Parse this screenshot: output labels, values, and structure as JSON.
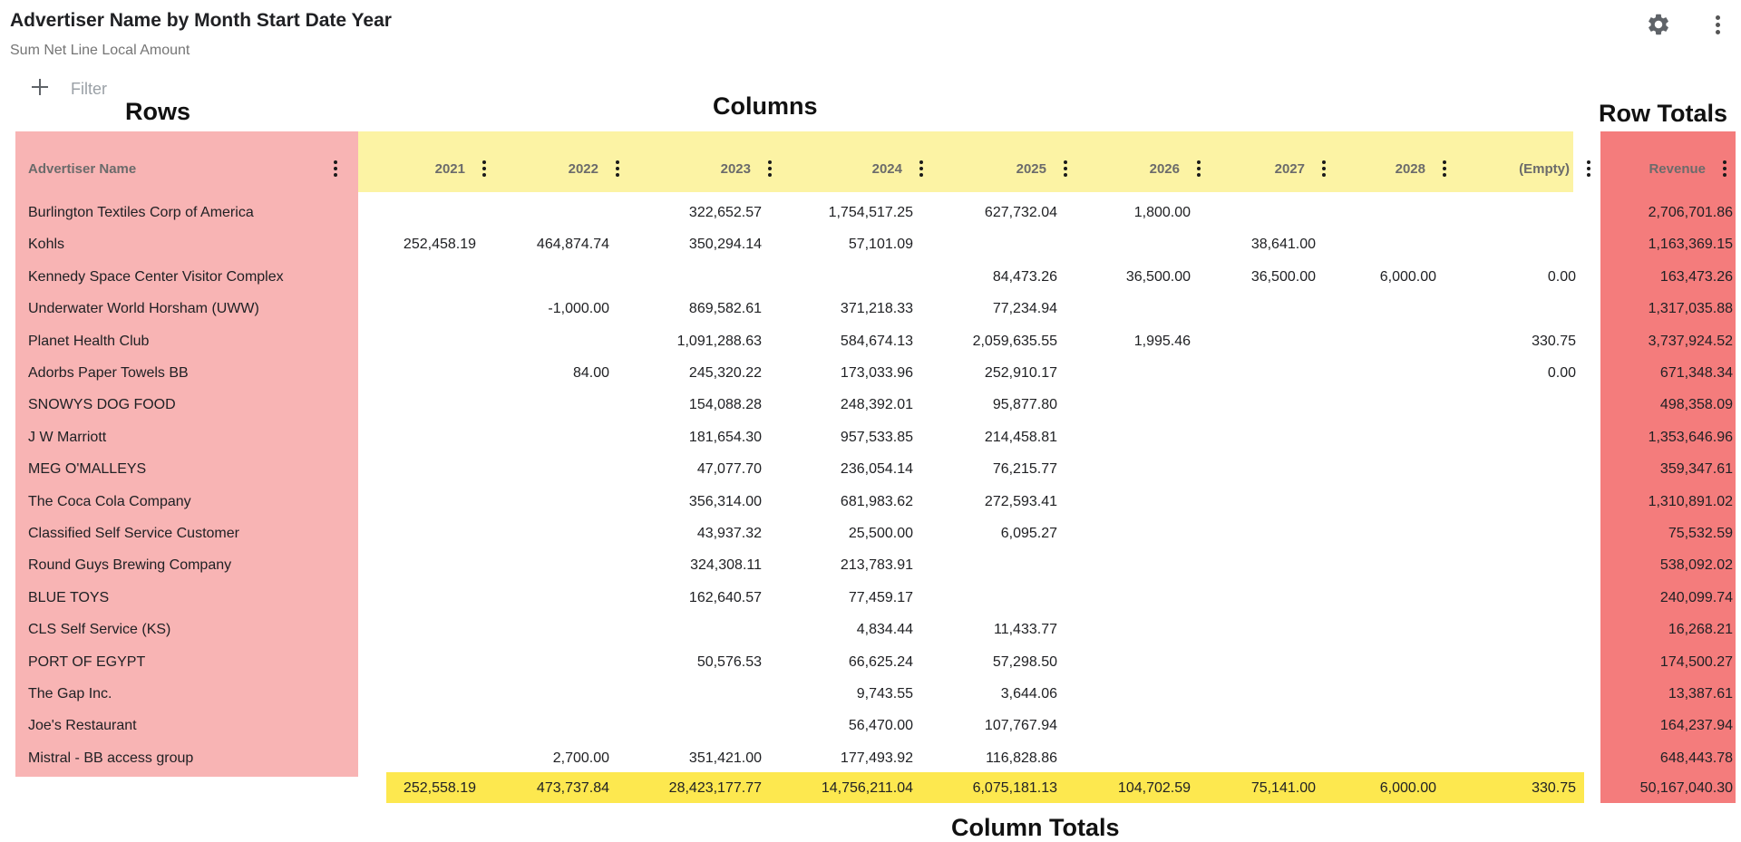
{
  "title": "Advertiser Name by Month Start Date Year",
  "subtitle": "Sum Net Line Local Amount",
  "toolbar": {
    "settings_icon": "gear-icon",
    "more_icon": "more-vert-icon",
    "add_icon": "plus-icon",
    "filter_placeholder": "Filter"
  },
  "annotations": {
    "rows": "Rows",
    "columns": "Columns",
    "row_totals": "Row Totals",
    "column_totals": "Column Totals"
  },
  "colors": {
    "rows_area": "#f8b4b4",
    "columns_area": "#fcf3a4",
    "row_totals_area": "#f47c7c",
    "column_totals_area": "#fde84f"
  },
  "table": {
    "row_header": "Advertiser Name",
    "column_headers": [
      "2021",
      "2022",
      "2023",
      "2024",
      "2025",
      "2026",
      "2027",
      "2028",
      "(Empty)"
    ],
    "total_header": "Revenue",
    "rows": [
      {
        "name": "Burlington Textiles Corp of America",
        "values": [
          "",
          "",
          "322,652.57",
          "1,754,517.25",
          "627,732.04",
          "1,800.00",
          "",
          "",
          ""
        ],
        "total": "2,706,701.86"
      },
      {
        "name": "Kohls",
        "values": [
          "252,458.19",
          "464,874.74",
          "350,294.14",
          "57,101.09",
          "",
          "",
          "38,641.00",
          "",
          ""
        ],
        "total": "1,163,369.15"
      },
      {
        "name": "Kennedy Space Center Visitor Complex",
        "values": [
          "",
          "",
          "",
          "",
          "84,473.26",
          "36,500.00",
          "36,500.00",
          "6,000.00",
          "0.00"
        ],
        "total": "163,473.26"
      },
      {
        "name": "Underwater World Horsham (UWW)",
        "values": [
          "",
          "-1,000.00",
          "869,582.61",
          "371,218.33",
          "77,234.94",
          "",
          "",
          "",
          ""
        ],
        "total": "1,317,035.88"
      },
      {
        "name": "Planet Health Club",
        "values": [
          "",
          "",
          "1,091,288.63",
          "584,674.13",
          "2,059,635.55",
          "1,995.46",
          "",
          "",
          "330.75"
        ],
        "total": "3,737,924.52"
      },
      {
        "name": "Adorbs Paper Towels BB",
        "values": [
          "",
          "84.00",
          "245,320.22",
          "173,033.96",
          "252,910.17",
          "",
          "",
          "",
          "0.00"
        ],
        "total": "671,348.34"
      },
      {
        "name": "SNOWYS DOG FOOD",
        "values": [
          "",
          "",
          "154,088.28",
          "248,392.01",
          "95,877.80",
          "",
          "",
          "",
          ""
        ],
        "total": "498,358.09"
      },
      {
        "name": "J W Marriott",
        "values": [
          "",
          "",
          "181,654.30",
          "957,533.85",
          "214,458.81",
          "",
          "",
          "",
          ""
        ],
        "total": "1,353,646.96"
      },
      {
        "name": "MEG O'MALLEYS",
        "values": [
          "",
          "",
          "47,077.70",
          "236,054.14",
          "76,215.77",
          "",
          "",
          "",
          ""
        ],
        "total": "359,347.61"
      },
      {
        "name": "The Coca Cola Company",
        "values": [
          "",
          "",
          "356,314.00",
          "681,983.62",
          "272,593.41",
          "",
          "",
          "",
          ""
        ],
        "total": "1,310,891.02"
      },
      {
        "name": "Classified Self Service Customer",
        "values": [
          "",
          "",
          "43,937.32",
          "25,500.00",
          "6,095.27",
          "",
          "",
          "",
          ""
        ],
        "total": "75,532.59"
      },
      {
        "name": "Round Guys Brewing Company",
        "values": [
          "",
          "",
          "324,308.11",
          "213,783.91",
          "",
          "",
          "",
          "",
          ""
        ],
        "total": "538,092.02"
      },
      {
        "name": "BLUE TOYS",
        "values": [
          "",
          "",
          "162,640.57",
          "77,459.17",
          "",
          "",
          "",
          "",
          ""
        ],
        "total": "240,099.74"
      },
      {
        "name": "CLS Self Service (KS)",
        "values": [
          "",
          "",
          "",
          "4,834.44",
          "11,433.77",
          "",
          "",
          "",
          ""
        ],
        "total": "16,268.21"
      },
      {
        "name": "PORT OF EGYPT",
        "values": [
          "",
          "",
          "50,576.53",
          "66,625.24",
          "57,298.50",
          "",
          "",
          "",
          ""
        ],
        "total": "174,500.27"
      },
      {
        "name": "The Gap Inc.",
        "values": [
          "",
          "",
          "",
          "9,743.55",
          "3,644.06",
          "",
          "",
          "",
          ""
        ],
        "total": "13,387.61"
      },
      {
        "name": "Joe's Restaurant",
        "values": [
          "",
          "",
          "",
          "56,470.00",
          "107,767.94",
          "",
          "",
          "",
          ""
        ],
        "total": "164,237.94"
      },
      {
        "name": "Mistral - BB access group",
        "values": [
          "",
          "2,700.00",
          "351,421.00",
          "177,493.92",
          "116,828.86",
          "",
          "",
          "",
          ""
        ],
        "total": "648,443.78"
      }
    ],
    "column_totals": [
      "252,558.19",
      "473,737.84",
      "28,423,177.77",
      "14,756,211.04",
      "6,075,181.13",
      "104,702.59",
      "75,141.00",
      "6,000.00",
      "330.75"
    ],
    "grand_total": "50,167,040.30"
  }
}
